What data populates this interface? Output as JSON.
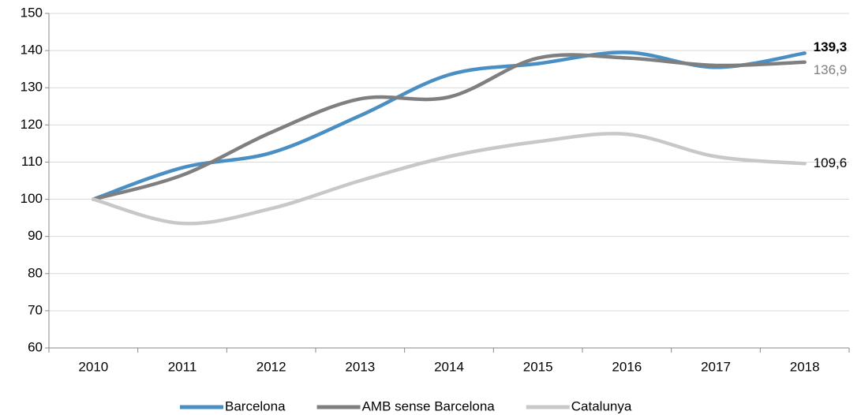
{
  "chart_data": {
    "type": "line",
    "categories": [
      "2010",
      "2011",
      "2012",
      "2013",
      "2014",
      "2015",
      "2016",
      "2017",
      "2018"
    ],
    "series": [
      {
        "name": "Barcelona",
        "color": "#4a8fc4",
        "values": [
          100,
          108.5,
          112.5,
          122.5,
          133.5,
          136.5,
          139.5,
          135.5,
          139.3
        ],
        "value_labels": [
          null,
          null,
          null,
          null,
          null,
          null,
          null,
          null,
          "139,3"
        ]
      },
      {
        "name": "AMB sense Barcelona",
        "color": "#7f7f7f",
        "values": [
          100,
          106.5,
          118,
          127,
          127.5,
          138,
          138,
          136,
          136.9
        ],
        "value_labels": [
          null,
          null,
          null,
          null,
          null,
          null,
          null,
          null,
          "136,9"
        ]
      },
      {
        "name": "Catalunya",
        "color": "#c8c8c8",
        "values": [
          100,
          93.5,
          97.5,
          105,
          111.5,
          115.5,
          117.5,
          111.5,
          109.6
        ],
        "value_labels": [
          null,
          null,
          null,
          null,
          null,
          null,
          null,
          null,
          "109,6"
        ]
      }
    ],
    "ylim": [
      60,
      150
    ],
    "yticks": [
      60,
      70,
      80,
      90,
      100,
      110,
      120,
      130,
      140,
      150
    ],
    "grid": true,
    "legend": "bottom",
    "smooth": true
  }
}
